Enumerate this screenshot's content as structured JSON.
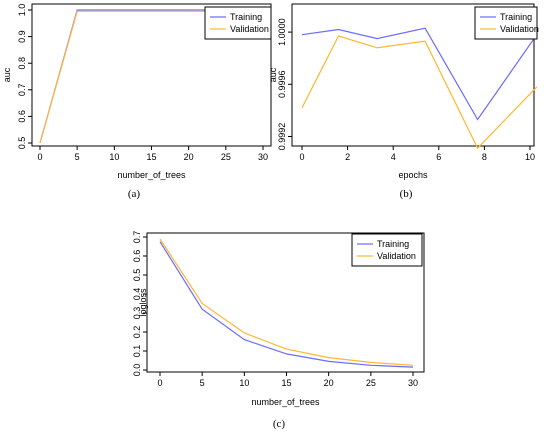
{
  "colors": {
    "training": "#6b6bff",
    "validation": "#ffb733"
  },
  "chart_data": [
    {
      "type": "line",
      "caption": "(a)",
      "xlabel": "number_of_trees",
      "ylabel": "auc",
      "xlim": [
        0,
        30
      ],
      "ylim": [
        0.5,
        1.0
      ],
      "x_ticks": [
        "0",
        "5",
        "10",
        "15",
        "20",
        "25",
        "30"
      ],
      "y_ticks": [
        "0.5",
        "0.6",
        "0.7",
        "0.8",
        "0.9",
        "1.0"
      ],
      "legend": {
        "position": "top-right"
      },
      "series": [
        {
          "name": "Training",
          "color_key": "training",
          "x": [
            0,
            5,
            10,
            15,
            20,
            25,
            30
          ],
          "y": [
            0.5,
            1.0,
            1.0,
            1.0,
            1.0,
            1.0,
            1.0
          ]
        },
        {
          "name": "Validation",
          "color_key": "validation",
          "x": [
            0,
            5,
            10,
            15,
            20,
            25,
            30
          ],
          "y": [
            0.5,
            0.995,
            0.995,
            0.995,
            0.995,
            0.995,
            0.995
          ]
        }
      ]
    },
    {
      "type": "line",
      "caption": "(b)",
      "xlabel": "epochs",
      "ylabel": "auc",
      "xlim": [
        0,
        10
      ],
      "ylim": [
        0.99915,
        1.0002
      ],
      "x_ticks": [
        "0",
        "2",
        "4",
        "6",
        "8",
        "10"
      ],
      "y_ticks": [
        "0.9992",
        "0.9996",
        "1.0000"
      ],
      "legend": {
        "position": "top-right"
      },
      "series": [
        {
          "name": "Training",
          "color_key": "training",
          "x": [
            0,
            1.6,
            3.3,
            5.4,
            7.7,
            10.3
          ],
          "y": [
            0.99998,
            1.00002,
            0.99995,
            1.00003,
            0.99933,
            0.99998
          ]
        },
        {
          "name": "Validation",
          "color_key": "validation",
          "x": [
            0,
            1.6,
            3.3,
            5.4,
            7.7,
            10.3
          ],
          "y": [
            0.99942,
            0.99997,
            0.99988,
            0.99993,
            0.99911,
            0.99958
          ]
        }
      ]
    },
    {
      "type": "line",
      "caption": "(c)",
      "xlabel": "number_of_trees",
      "ylabel": "logloss",
      "xlim": [
        0,
        30
      ],
      "ylim": [
        0,
        0.7
      ],
      "x_ticks": [
        "0",
        "5",
        "10",
        "15",
        "20",
        "25",
        "30"
      ],
      "y_ticks": [
        "0.0",
        "0.1",
        "0.2",
        "0.3",
        "0.4",
        "0.5",
        "0.6",
        "0.7"
      ],
      "legend": {
        "position": "top-right"
      },
      "series": [
        {
          "name": "Training",
          "color_key": "training",
          "x": [
            0,
            5,
            10,
            15,
            20,
            25,
            30
          ],
          "y": [
            0.675,
            0.32,
            0.16,
            0.085,
            0.045,
            0.025,
            0.015
          ]
        },
        {
          "name": "Validation",
          "color_key": "validation",
          "x": [
            0,
            5,
            10,
            15,
            20,
            25,
            30
          ],
          "y": [
            0.69,
            0.35,
            0.195,
            0.11,
            0.065,
            0.04,
            0.025
          ]
        }
      ]
    }
  ]
}
